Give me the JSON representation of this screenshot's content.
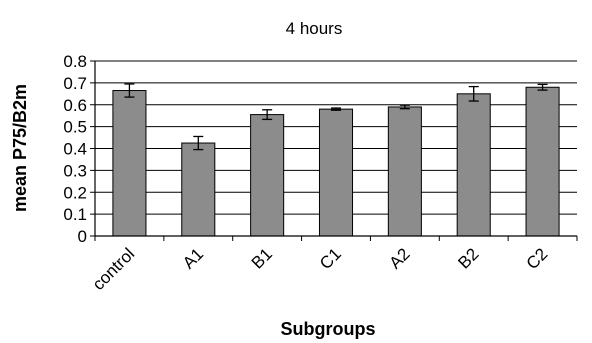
{
  "chart_data": {
    "type": "bar",
    "title": "4 hours",
    "xlabel": "Subgroups",
    "ylabel": "mean P75/B2m",
    "categories": [
      "control",
      "A1",
      "B1",
      "C1",
      "A2",
      "B2",
      "C2"
    ],
    "values": [
      0.665,
      0.425,
      0.555,
      0.58,
      0.59,
      0.65,
      0.68
    ],
    "errors": [
      0.03,
      0.03,
      0.022,
      0.005,
      0.008,
      0.033,
      0.013
    ],
    "ylim": [
      0,
      0.8
    ],
    "yticks": [
      "0",
      "0.1",
      "0.2",
      "0.3",
      "0.4",
      "0.5",
      "0.6",
      "0.7",
      "0.8"
    ],
    "grid": true,
    "legend": "none",
    "bar_color": "#8c8c8c",
    "bar_edge_color": "#000000",
    "grid_color": "#000000"
  }
}
